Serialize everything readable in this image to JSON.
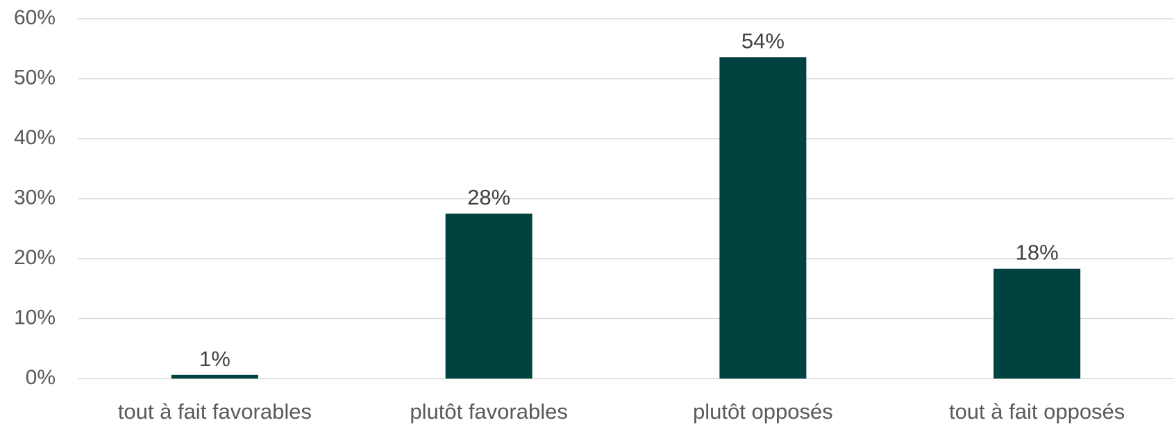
{
  "chart_data": {
    "type": "bar",
    "categories": [
      "tout à fait favorables",
      "plutôt favorables",
      "plutôt opposés",
      "tout à fait opposés"
    ],
    "values": [
      0.6,
      27.5,
      53.6,
      18.3
    ],
    "data_labels": [
      "1%",
      "28%",
      "54%",
      "18%"
    ],
    "y_ticks": [
      0,
      10,
      20,
      30,
      40,
      50,
      60
    ],
    "y_tick_labels": [
      "0%",
      "10%",
      "20%",
      "30%",
      "40%",
      "50%",
      "60%"
    ],
    "ylim": [
      0,
      60
    ],
    "grid": true,
    "legend": "none",
    "bar_color": "#00423f"
  }
}
